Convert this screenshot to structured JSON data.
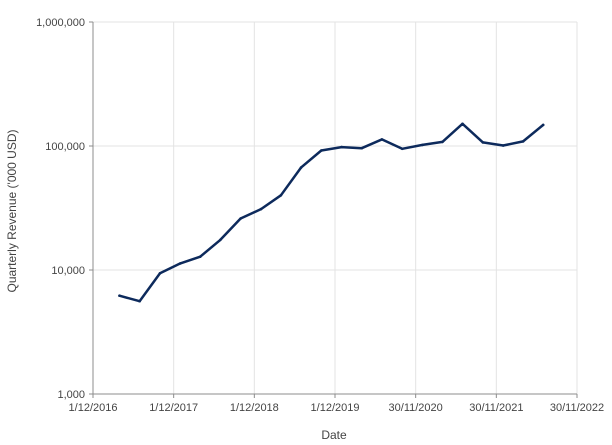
{
  "chart_data": {
    "type": "line",
    "title": "",
    "xlabel": "Date",
    "ylabel": "Quarterly Revenue ('000 USD)",
    "y_scale": "log",
    "ylim": [
      1000,
      1000000
    ],
    "xlim": [
      "2016-12-01",
      "2022-11-30"
    ],
    "grid": true,
    "legend": "none",
    "color": "#0d2a5c",
    "y_ticks": [
      {
        "value": 1000,
        "label": "1,000"
      },
      {
        "value": 10000,
        "label": "10,000"
      },
      {
        "value": 100000,
        "label": "100,000"
      },
      {
        "value": 1000000,
        "label": "1,000,000"
      }
    ],
    "x_ticks": [
      {
        "date": "2016-12-01",
        "label": "1/12/2016"
      },
      {
        "date": "2017-12-01",
        "label": "1/12/2017"
      },
      {
        "date": "2018-12-01",
        "label": "1/12/2018"
      },
      {
        "date": "2019-12-01",
        "label": "1/12/2019"
      },
      {
        "date": "2020-11-30",
        "label": "30/11/2020"
      },
      {
        "date": "2021-11-30",
        "label": "30/11/2021"
      },
      {
        "date": "2022-11-30",
        "label": "30/11/2022"
      }
    ],
    "series": [
      {
        "color": "#0d2a5c",
        "points": [
          {
            "x": "2017-03-31",
            "y": 6200
          },
          {
            "x": "2017-06-30",
            "y": 5600
          },
          {
            "x": "2017-09-30",
            "y": 9400
          },
          {
            "x": "2017-12-31",
            "y": 11300
          },
          {
            "x": "2018-03-31",
            "y": 12800
          },
          {
            "x": "2018-06-30",
            "y": 17500
          },
          {
            "x": "2018-09-30",
            "y": 26000
          },
          {
            "x": "2018-12-31",
            "y": 31000
          },
          {
            "x": "2019-03-31",
            "y": 40000
          },
          {
            "x": "2019-06-30",
            "y": 67000
          },
          {
            "x": "2019-09-30",
            "y": 92000
          },
          {
            "x": "2019-12-31",
            "y": 98000
          },
          {
            "x": "2020-03-31",
            "y": 96000
          },
          {
            "x": "2020-06-30",
            "y": 113000
          },
          {
            "x": "2020-09-30",
            "y": 95000
          },
          {
            "x": "2020-12-31",
            "y": 102000
          },
          {
            "x": "2021-03-31",
            "y": 108000
          },
          {
            "x": "2021-06-30",
            "y": 151000
          },
          {
            "x": "2021-09-30",
            "y": 107000
          },
          {
            "x": "2021-12-31",
            "y": 101000
          },
          {
            "x": "2022-03-31",
            "y": 109000
          },
          {
            "x": "2022-06-30",
            "y": 148000
          }
        ]
      }
    ]
  }
}
